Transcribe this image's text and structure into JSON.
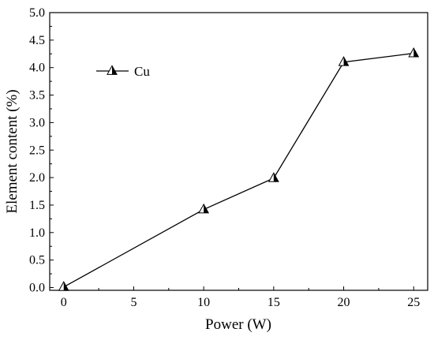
{
  "chart_data": {
    "type": "line",
    "title": "",
    "xlabel": "Power (W)",
    "ylabel": "Element content (%)",
    "xlim": [
      -1,
      26
    ],
    "ylim": [
      -0.05,
      5.0
    ],
    "xticks": [
      0,
      5,
      10,
      15,
      20,
      25
    ],
    "yticks": [
      0.0,
      0.5,
      1.0,
      1.5,
      2.0,
      2.5,
      3.0,
      3.5,
      4.0,
      4.5,
      5.0
    ],
    "xtick_labels": [
      "0",
      "5",
      "10",
      "15",
      "20",
      "25"
    ],
    "ytick_labels": [
      "0.0",
      "0.5",
      "1.0",
      "1.5",
      "2.0",
      "2.5",
      "3.0",
      "3.5",
      "4.0",
      "4.5",
      "5.0"
    ],
    "grid": false,
    "legend_position": "top-left",
    "series": [
      {
        "name": "Cu",
        "marker": "half-filled-triangle",
        "color": "#000000",
        "x": [
          0,
          10,
          15,
          20,
          25
        ],
        "y": [
          0.01,
          1.42,
          1.99,
          4.1,
          4.26
        ]
      }
    ]
  }
}
